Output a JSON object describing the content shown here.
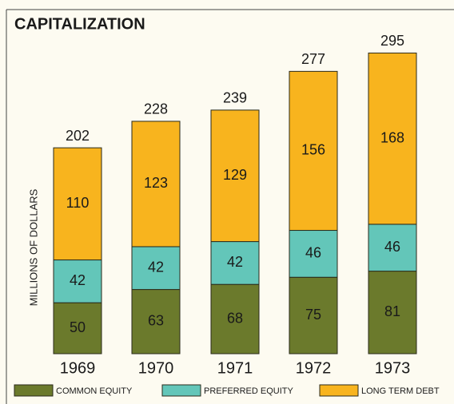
{
  "chart_data": {
    "type": "stacked_bar",
    "title": "CAPITALIZATION",
    "y_label": "MILLIONS OF DOLLARS",
    "categories": [
      "1969",
      "1970",
      "1971",
      "1972",
      "1973"
    ],
    "series": [
      {
        "name": "COMMON EQUITY",
        "color": "#6b7a2c",
        "values": [
          50,
          63,
          68,
          75,
          81
        ]
      },
      {
        "name": "PREFERRED EQUITY",
        "color": "#63c6b9",
        "values": [
          42,
          42,
          42,
          46,
          46
        ]
      },
      {
        "name": "LONG TERM DEBT",
        "color": "#f8b41e",
        "values": [
          110,
          123,
          129,
          156,
          168
        ]
      }
    ],
    "totals": [
      202,
      228,
      239,
      277,
      295
    ],
    "ylim": [
      0,
      300
    ]
  }
}
